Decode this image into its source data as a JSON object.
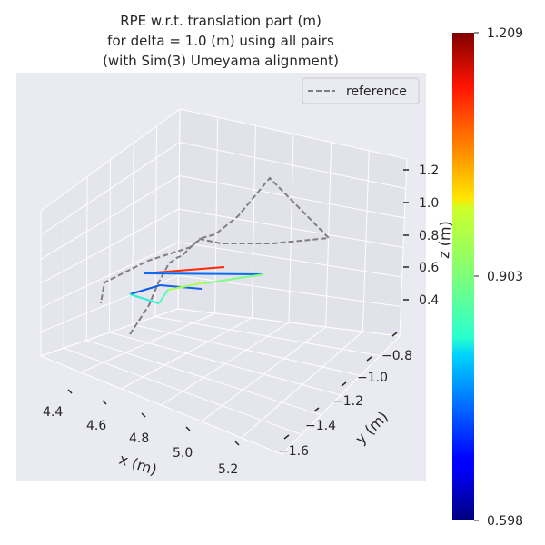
{
  "chart_data": {
    "type": "line3d",
    "title": [
      "RPE w.r.t. translation part (m)",
      "for delta = 1.0 (m) using all pairs",
      "(with Sim(3) Umeyama alignment)"
    ],
    "xlabel": "x (m)",
    "ylabel": "y (m)",
    "zlabel": "z (m)",
    "x_ticks": [
      "4.4",
      "4.6",
      "4.8",
      "5.0",
      "5.2"
    ],
    "y_ticks": [
      "−0.8",
      "−1.0",
      "−1.2",
      "−1.4",
      "−1.6"
    ],
    "z_ticks": [
      "0.4",
      "0.6",
      "0.8",
      "1.0",
      "1.2"
    ],
    "legend": "reference",
    "colorbar": {
      "min": "0.598",
      "mid": "0.903",
      "max": "1.209"
    },
    "colors": {
      "background": "#EAEAF2",
      "grid": "#FFFFFF",
      "reference": "#7F7F7F"
    }
  }
}
